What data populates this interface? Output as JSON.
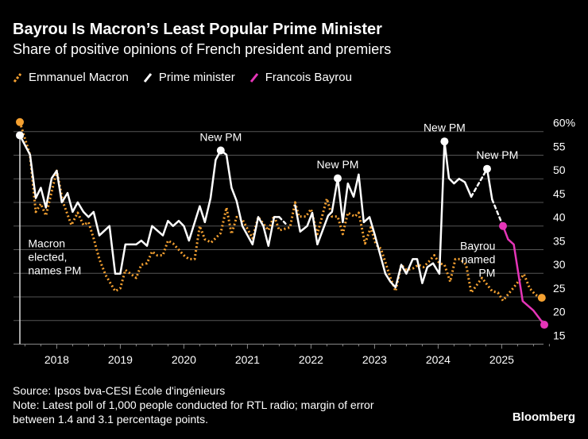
{
  "header": {
    "title": "Bayrou Is Macron’s Least Popular Prime Minister",
    "subtitle": "Share of positive opinions of French president and premiers"
  },
  "legend": [
    {
      "label": "Emmanuel Macron",
      "color": "#f5a131"
    },
    {
      "label": "Prime minister",
      "color": "#ffffff"
    },
    {
      "label": "Francois Bayrou",
      "color": "#e535b8"
    }
  ],
  "chart_data": {
    "type": "line",
    "title": "Bayrou Is Macron’s Least Popular Prime Minister",
    "ylabel": "Share of positive opinions (%)",
    "ylim": [
      15,
      60
    ],
    "xlim": [
      2017.42,
      2025.75
    ],
    "y_ticks": [
      "60%",
      "55",
      "50",
      "45",
      "40",
      "35",
      "30",
      "25",
      "20",
      "15"
    ],
    "y_tick_values": [
      60,
      55,
      50,
      45,
      40,
      35,
      30,
      25,
      20,
      15
    ],
    "x_ticks": [
      "2018",
      "2019",
      "2020",
      "2021",
      "2022",
      "2023",
      "2024",
      "2025"
    ],
    "x_tick_values": [
      2018,
      2019,
      2020,
      2021,
      2022,
      2023,
      2024,
      2025
    ],
    "grid": true,
    "legend_position": "top-left",
    "series": [
      {
        "name": "Emmanuel Macron",
        "color": "#f5a131",
        "style": "dotted",
        "points": [
          [
            2017.42,
            62
          ],
          [
            2017.58,
            55
          ],
          [
            2017.67,
            43
          ],
          [
            2017.75,
            44.7
          ],
          [
            2017.83,
            42.2
          ],
          [
            2018.0,
            51.7
          ],
          [
            2018.1,
            45
          ],
          [
            2018.23,
            40.2
          ],
          [
            2018.33,
            42.8
          ],
          [
            2018.42,
            40.2
          ],
          [
            2018.5,
            40.8
          ],
          [
            2018.58,
            37.4
          ],
          [
            2018.67,
            33
          ],
          [
            2018.77,
            29.6
          ],
          [
            2018.92,
            26.2
          ],
          [
            2019.0,
            26.8
          ],
          [
            2019.08,
            30.7
          ],
          [
            2019.25,
            29
          ],
          [
            2019.33,
            31.8
          ],
          [
            2019.42,
            32.1
          ],
          [
            2019.5,
            34.6
          ],
          [
            2019.58,
            33.8
          ],
          [
            2019.67,
            33.8
          ],
          [
            2019.75,
            36.9
          ],
          [
            2019.83,
            36.3
          ],
          [
            2020.0,
            33.8
          ],
          [
            2020.08,
            33
          ],
          [
            2020.17,
            33
          ],
          [
            2020.25,
            40
          ],
          [
            2020.33,
            37.2
          ],
          [
            2020.43,
            36.5
          ],
          [
            2020.58,
            38.5
          ],
          [
            2020.67,
            43.9
          ],
          [
            2020.75,
            38.3
          ],
          [
            2020.83,
            41.9
          ],
          [
            2020.92,
            41.4
          ],
          [
            2021.08,
            37.4
          ],
          [
            2021.17,
            41.9
          ],
          [
            2021.33,
            39.1
          ],
          [
            2021.42,
            42.2
          ],
          [
            2021.5,
            39.1
          ],
          [
            2021.67,
            39.7
          ],
          [
            2021.75,
            45
          ],
          [
            2021.81,
            42
          ],
          [
            2021.92,
            42
          ],
          [
            2022.0,
            43.6
          ],
          [
            2022.1,
            38.3
          ],
          [
            2022.25,
            45.8
          ],
          [
            2022.33,
            42
          ],
          [
            2022.42,
            42
          ],
          [
            2022.5,
            38.3
          ],
          [
            2022.58,
            42.8
          ],
          [
            2022.69,
            42
          ],
          [
            2022.75,
            42.8
          ],
          [
            2022.85,
            36.3
          ],
          [
            2022.94,
            39.7
          ],
          [
            2023.02,
            36.1
          ],
          [
            2023.1,
            35.2
          ],
          [
            2023.25,
            29
          ],
          [
            2023.33,
            26.2
          ],
          [
            2023.42,
            31.8
          ],
          [
            2023.5,
            30.7
          ],
          [
            2023.6,
            31
          ],
          [
            2023.69,
            31.8
          ],
          [
            2023.77,
            31.3
          ],
          [
            2023.85,
            32.4
          ],
          [
            2023.94,
            33.8
          ],
          [
            2024.02,
            32.1
          ],
          [
            2024.1,
            31.8
          ],
          [
            2024.19,
            28.2
          ],
          [
            2024.27,
            33
          ],
          [
            2024.35,
            33
          ],
          [
            2024.44,
            31.8
          ],
          [
            2024.52,
            25.9
          ],
          [
            2024.69,
            29
          ],
          [
            2024.85,
            26.2
          ],
          [
            2024.94,
            25.9
          ],
          [
            2025.02,
            24.2
          ],
          [
            2025.19,
            27
          ],
          [
            2025.35,
            29.8
          ],
          [
            2025.44,
            26.8
          ],
          [
            2025.52,
            25.6
          ],
          [
            2025.6,
            24.8
          ],
          [
            2025.67,
            24.8
          ]
        ],
        "markers": [
          [
            2017.42,
            62
          ],
          [
            2025.63,
            24.8
          ]
        ]
      },
      {
        "name": "Prime minister",
        "color": "#ffffff",
        "segments": [
          {
            "style": "solid",
            "points": [
              [
                2017.42,
                59.2
              ],
              [
                2017.58,
                55.1
              ],
              [
                2017.67,
                45.9
              ],
              [
                2017.75,
                48.1
              ],
              [
                2017.83,
                43.9
              ],
              [
                2017.92,
                50.1
              ],
              [
                2018.0,
                51.7
              ],
              [
                2018.08,
                45
              ],
              [
                2018.17,
                47
              ],
              [
                2018.25,
                43
              ],
              [
                2018.33,
                45
              ],
              [
                2018.42,
                43
              ],
              [
                2018.5,
                41.9
              ],
              [
                2018.58,
                43
              ],
              [
                2018.67,
                38
              ],
              [
                2018.83,
                40
              ],
              [
                2018.92,
                29.9
              ],
              [
                2019.0,
                29.9
              ],
              [
                2019.08,
                36.1
              ],
              [
                2019.25,
                36.1
              ],
              [
                2019.33,
                36.9
              ],
              [
                2019.42,
                35.8
              ],
              [
                2019.5,
                40
              ],
              [
                2019.67,
                38
              ],
              [
                2019.75,
                41.1
              ],
              [
                2019.83,
                40
              ],
              [
                2019.92,
                41.1
              ],
              [
                2020.0,
                40
              ],
              [
                2020.08,
                36.9
              ],
              [
                2020.25,
                44.2
              ],
              [
                2020.33,
                40.8
              ],
              [
                2020.42,
                45.9
              ],
              [
                2020.5,
                54
              ],
              [
                2020.58,
                56
              ],
              [
                2020.67,
                55.1
              ],
              [
                2020.75,
                48.1
              ],
              [
                2020.83,
                45.3
              ],
              [
                2020.92,
                40
              ],
              [
                2021.08,
                36.1
              ],
              [
                2021.17,
                41.9
              ],
              [
                2021.25,
                40
              ],
              [
                2021.33,
                35.8
              ],
              [
                2021.42,
                41.9
              ],
              [
                2021.5,
                41.9
              ]
            ]
          },
          {
            "style": "dashed",
            "points": [
              [
                2021.5,
                41.9
              ],
              [
                2021.6,
                40.5
              ]
            ]
          },
          {
            "style": "solid",
            "points": [
              [
                2021.75,
                44.4
              ],
              [
                2021.83,
                38.8
              ],
              [
                2021.94,
                40
              ],
              [
                2022.02,
                42.8
              ],
              [
                2022.1,
                36.1
              ],
              [
                2022.27,
                42.2
              ],
              [
                2022.33,
                43
              ],
              [
                2022.42,
                50.1
              ],
              [
                2022.5,
                40.8
              ],
              [
                2022.58,
                49
              ],
              [
                2022.67,
                46.2
              ],
              [
                2022.75,
                50.9
              ],
              [
                2022.83,
                40.8
              ],
              [
                2022.92,
                41.9
              ],
              [
                2023.0,
                38.3
              ],
              [
                2023.17,
                29.9
              ],
              [
                2023.25,
                28.2
              ],
              [
                2023.33,
                27
              ],
              [
                2023.42,
                31.8
              ],
              [
                2023.5,
                29.9
              ],
              [
                2023.6,
                33
              ],
              [
                2023.67,
                33
              ],
              [
                2023.75,
                27.9
              ],
              [
                2023.83,
                31.3
              ],
              [
                2023.92,
                32.1
              ],
              [
                2024.02,
                29.9
              ],
              [
                2024.1,
                57.9
              ],
              [
                2024.17,
                50.1
              ],
              [
                2024.25,
                49
              ],
              [
                2024.33,
                50
              ],
              [
                2024.42,
                49.3
              ],
              [
                2024.52,
                46.2
              ]
            ]
          },
          {
            "style": "dashed",
            "points": [
              [
                2024.52,
                46.2
              ],
              [
                2024.77,
                52.1
              ]
            ]
          },
          {
            "style": "solid",
            "points": [
              [
                2024.77,
                52.1
              ],
              [
                2024.85,
                45.6
              ]
            ]
          },
          {
            "style": "dashed",
            "points": [
              [
                2024.85,
                45.6
              ],
              [
                2025.02,
                40
              ]
            ]
          }
        ],
        "markers": [
          [
            2017.42,
            59.2
          ],
          [
            2020.58,
            56
          ],
          [
            2022.42,
            50.1
          ],
          [
            2024.1,
            57.9
          ],
          [
            2024.77,
            52.1
          ]
        ]
      },
      {
        "name": "Francois Bayrou",
        "color": "#e535b8",
        "style": "solid",
        "points": [
          [
            2025.02,
            40
          ],
          [
            2025.1,
            37.2
          ],
          [
            2025.19,
            36.1
          ],
          [
            2025.33,
            24.1
          ],
          [
            2025.5,
            22.1
          ],
          [
            2025.67,
            19.1
          ]
        ],
        "markers": [
          [
            2025.02,
            40
          ],
          [
            2025.67,
            19.1
          ]
        ]
      }
    ],
    "annotations": [
      {
        "text": [
          "Macron",
          "elected,",
          "names PM"
        ],
        "x": 2017.55,
        "y": 35.5,
        "align": "left"
      },
      {
        "text": [
          "New PM"
        ],
        "x": 2020.58,
        "y": 58,
        "align": "center"
      },
      {
        "text": [
          "New PM"
        ],
        "x": 2022.42,
        "y": 52.2,
        "align": "center"
      },
      {
        "text": [
          "New PM"
        ],
        "x": 2024.1,
        "y": 60,
        "align": "center"
      },
      {
        "text": [
          "New PM"
        ],
        "x": 2024.93,
        "y": 54.2,
        "align": "center"
      },
      {
        "text": [
          "Bayrou",
          "named",
          "PM"
        ],
        "x": 2024.9,
        "y": 35,
        "align": "right"
      }
    ]
  },
  "footer": {
    "source": "Source: Ipsos bva-CESI École d'ingénieurs",
    "note_line1": "Note: Latest poll of 1,000 people conducted for RTL radio; margin of error",
    "note_line2": "between 1.4 and 3.1 percentage points.",
    "brand": "Bloomberg"
  }
}
